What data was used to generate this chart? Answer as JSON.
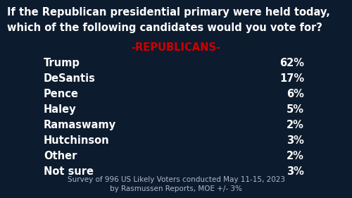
{
  "title_line1": "If the Republican presidential primary were held today,",
  "title_line2": "which of the following candidates would you vote for?",
  "subtitle": "-REPUBLICANS-",
  "candidates": [
    "Trump",
    "DeSantis",
    "Pence",
    "Haley",
    "Ramaswamy",
    "Hutchinson",
    "Other",
    "Not sure"
  ],
  "percentages": [
    "62%",
    "17%",
    "6%",
    "5%",
    "2%",
    "3%",
    "2%",
    "3%"
  ],
  "footnote_line1": "Survey of 996 US Likely Voters conducted May 11-15, 2023",
  "footnote_line2": "by Rasmussen Reports, MOE +/- 3%",
  "bg_color": "#0d1b2e",
  "title_color": "#ffffff",
  "subtitle_color": "#cc0000",
  "candidate_color": "#ffffff",
  "pct_color": "#ffffff",
  "footnote_color": "#b0b8cc",
  "title_fontsize": 10.5,
  "subtitle_fontsize": 10.5,
  "row_fontsize": 10.5,
  "footnote_fontsize": 7.5
}
